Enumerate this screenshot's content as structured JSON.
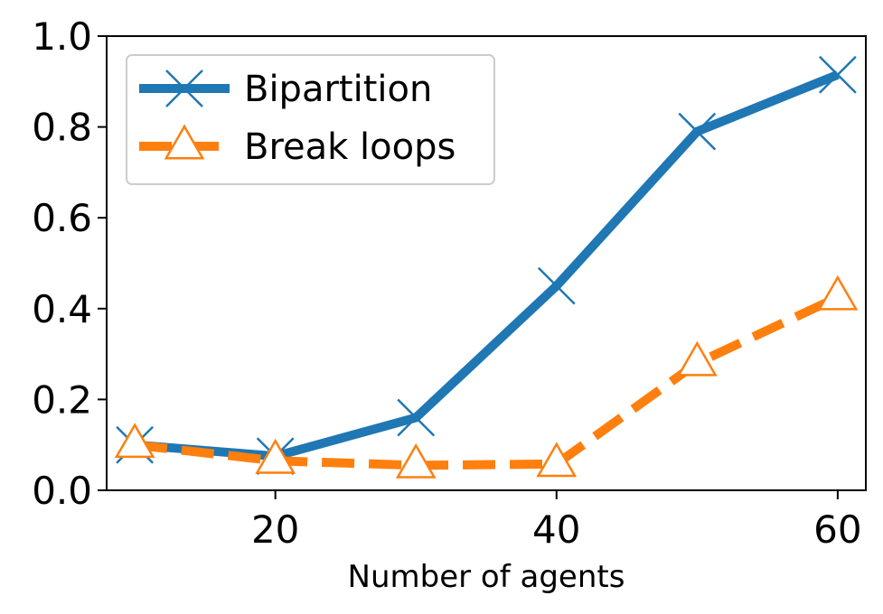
{
  "chart_data": {
    "type": "line",
    "title": "",
    "xlabel": "Number of agents",
    "ylabel": "",
    "xlim": [
      8,
      62
    ],
    "ylim": [
      0.0,
      1.0
    ],
    "x_ticks": [
      20,
      40,
      60
    ],
    "x_tick_labels": [
      "20",
      "40",
      "60"
    ],
    "y_ticks": [
      0.0,
      0.2,
      0.4,
      0.6,
      0.8,
      1.0
    ],
    "y_tick_labels": [
      "0.0",
      "0.2",
      "0.4",
      "0.6",
      "0.8",
      "1.0"
    ],
    "grid": false,
    "legend_position": "top-left",
    "x": [
      10,
      20,
      30,
      40,
      50,
      60
    ],
    "series": [
      {
        "name": "Bipartition",
        "values": [
          0.1,
          0.075,
          0.16,
          0.45,
          0.79,
          0.915
        ],
        "color": "#1f77b4",
        "line_style": "solid",
        "marker": "x"
      },
      {
        "name": "Break loops",
        "values": [
          0.1,
          0.065,
          0.055,
          0.058,
          0.28,
          0.425
        ],
        "color": "#ff7f0e",
        "line_style": "dashed",
        "marker": "triangle-open"
      }
    ]
  }
}
